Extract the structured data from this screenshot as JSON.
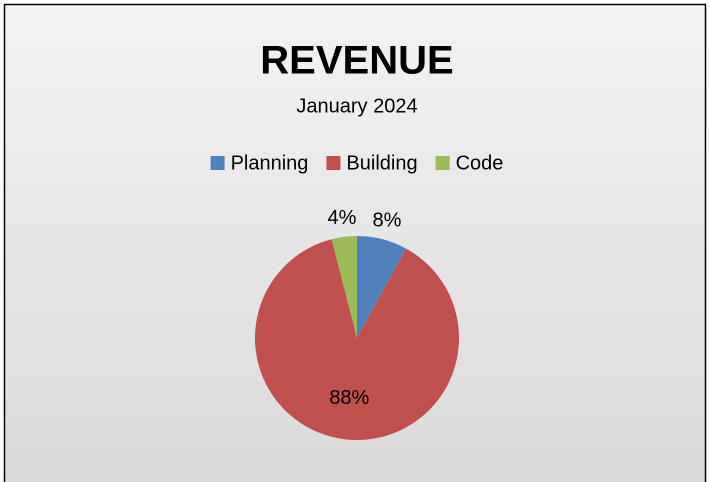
{
  "chart_data": {
    "type": "pie",
    "title": "REVENUE",
    "subtitle": "January 2024",
    "categories": [
      "Planning",
      "Building",
      "Code"
    ],
    "values": [
      8,
      88,
      4
    ],
    "value_labels": [
      "8%",
      "88%",
      "4%"
    ],
    "colors": [
      "#4f81bd",
      "#c0504d",
      "#9bbb59"
    ],
    "legend": "top"
  }
}
